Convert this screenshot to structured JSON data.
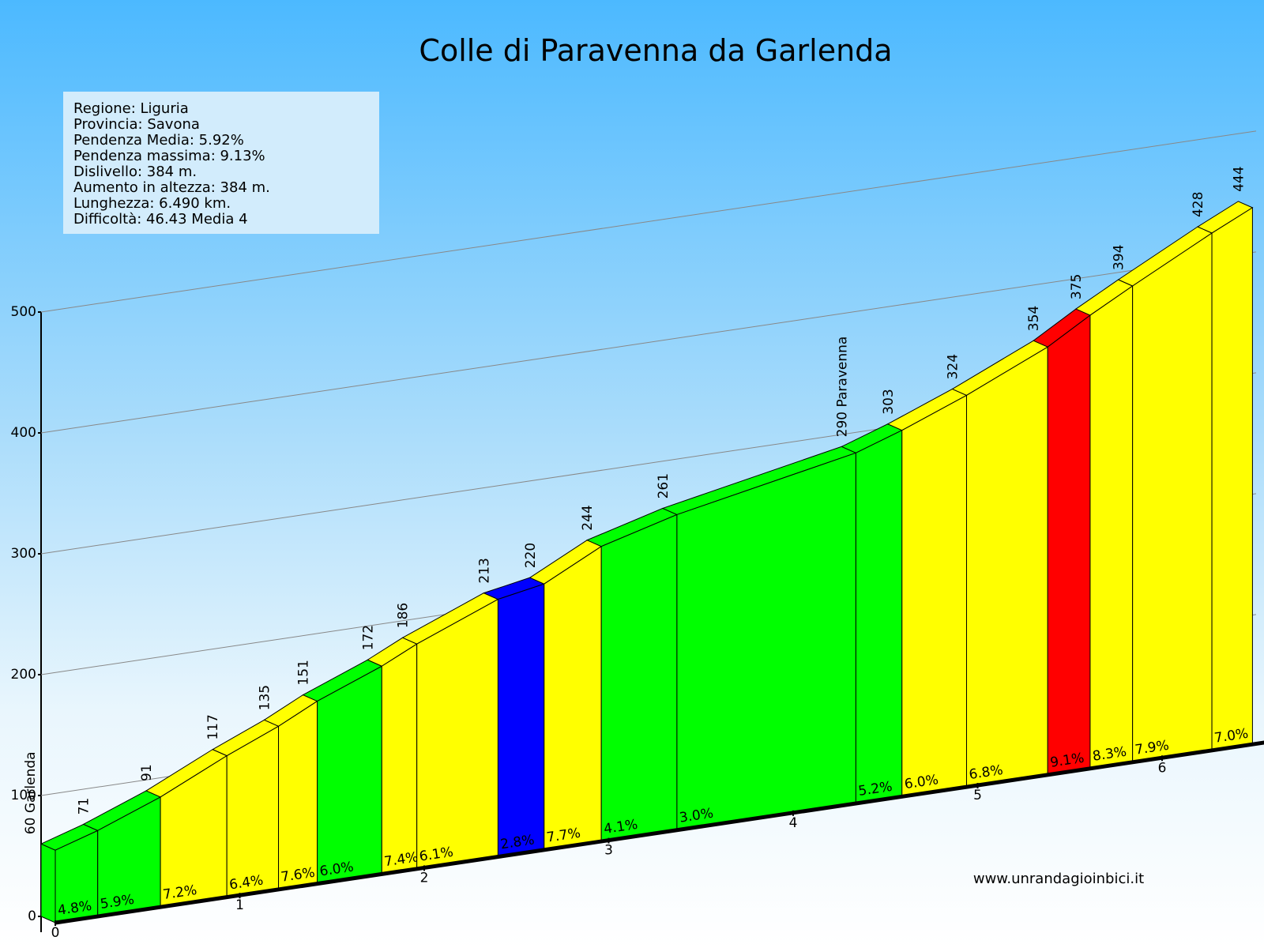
{
  "chart_data": {
    "type": "profile",
    "title": "Colle di Paravenna da Garlenda",
    "info": [
      "Regione: Liguria",
      "Provincia: Savona",
      "Pendenza Media: 5.92%",
      "Pendenza massima: 9.13%",
      "Dislivello:   384 m.",
      "Aumento in altezza:   384 m.",
      "Lunghezza:  6.490 km.",
      "Difficoltà: 46.43 Media 4"
    ],
    "source": "www.unrandagioinbici.it",
    "x": [
      0,
      0.23,
      0.57,
      0.93,
      1.21,
      1.42,
      1.77,
      1.96,
      2.4,
      2.65,
      2.96,
      3.37,
      4.34,
      4.59,
      4.94,
      5.38,
      5.61,
      5.84,
      6.27,
      6.49
    ],
    "values": [
      60,
      71,
      91,
      117,
      135,
      151,
      172,
      186,
      213,
      220,
      244,
      261,
      290,
      303,
      324,
      354,
      375,
      394,
      428,
      444
    ],
    "value_labels": [
      "60 Garlenda",
      "71",
      "91",
      "117",
      "135",
      "151",
      "172",
      "186",
      "213",
      "220",
      "244",
      "261",
      "290 Paravenna",
      "303",
      "324",
      "354",
      "375",
      "394",
      "428",
      "444"
    ],
    "gradients": {
      "values": [
        4.8,
        5.9,
        7.2,
        6.4,
        7.6,
        6.0,
        7.4,
        6.1,
        2.8,
        7.7,
        4.1,
        3.0,
        5.2,
        6.0,
        6.8,
        9.1,
        8.3,
        7.9,
        7.0
      ],
      "value_labels": [
        "4.8%",
        "5.9%",
        "7.2%",
        "6.4%",
        "7.6%",
        "6.0%",
        "7.4%",
        "6.1%",
        "2.8%",
        "7.7%",
        "4.1%",
        "3.0%",
        "5.2%",
        "6.0%",
        "6.8%",
        "9.1%",
        "8.3%",
        "7.9%",
        "7.0%"
      ],
      "colors": [
        "#00ff00",
        "#00ff00",
        "#ffff00",
        "#ffff00",
        "#ffff00",
        "#00ff00",
        "#ffff00",
        "#ffff00",
        "#0000ff",
        "#ffff00",
        "#00ff00",
        "#00ff00",
        "#00ff00",
        "#ffff00",
        "#ffff00",
        "#ff0000",
        "#ffff00",
        "#ffff00",
        "#ffff00"
      ]
    },
    "xlim": [
      0,
      6.49
    ],
    "xticks": [
      0,
      1,
      2,
      3,
      4,
      5,
      6
    ],
    "ylim": [
      0,
      500
    ],
    "yticks": [
      0,
      100,
      200,
      300,
      400,
      500
    ],
    "grid": true
  }
}
